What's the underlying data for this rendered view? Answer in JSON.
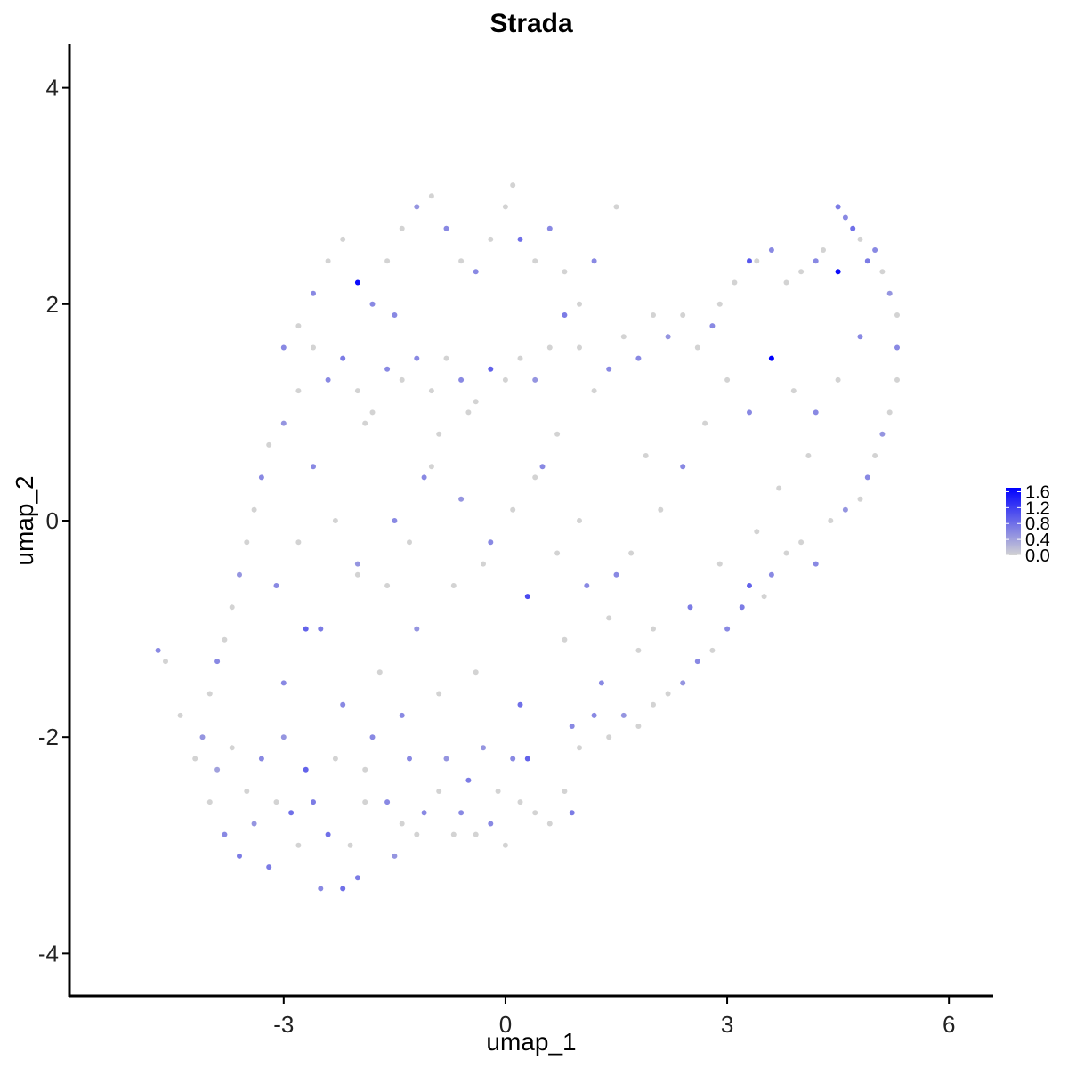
{
  "chart_data": {
    "type": "scatter",
    "title": "Strada",
    "xlabel": "umap_1",
    "ylabel": "umap_2",
    "xlim": [
      -5.9,
      6.6
    ],
    "ylim": [
      -4.4,
      4.4
    ],
    "xticks": [
      -3,
      0,
      3,
      6
    ],
    "yticks": [
      -4,
      -2,
      0,
      2,
      4
    ],
    "grid": false,
    "legend": {
      "placement": "right",
      "min": 0.0,
      "max": 1.7,
      "breaks": [
        "1.6",
        "1.2",
        "0.8",
        "0.4",
        "0.0"
      ],
      "low_color": "#d3d3d3",
      "high_color": "#0000ff"
    },
    "colors": {
      "low": "#d3d3d3",
      "high": "#0000ff"
    },
    "points": [
      [
        -4.7,
        -1.2,
        0.6
      ],
      [
        -4.6,
        -1.3,
        0.0
      ],
      [
        -4.4,
        -1.8,
        0.0
      ],
      [
        -4.2,
        -2.2,
        0.0
      ],
      [
        -4.1,
        -2.0,
        0.5
      ],
      [
        -4.0,
        -2.6,
        0.0
      ],
      [
        -3.9,
        -2.3,
        0.4
      ],
      [
        -3.8,
        -2.9,
        0.6
      ],
      [
        -3.7,
        -2.1,
        0.0
      ],
      [
        -3.6,
        -3.1,
        0.7
      ],
      [
        -3.5,
        -2.5,
        0.0
      ],
      [
        -3.4,
        -2.8,
        0.5
      ],
      [
        -3.3,
        -2.2,
        0.6
      ],
      [
        -3.2,
        -3.2,
        0.7
      ],
      [
        -3.1,
        -2.6,
        0.0
      ],
      [
        -3.0,
        -2.0,
        0.5
      ],
      [
        -2.9,
        -2.7,
        0.8
      ],
      [
        -2.8,
        -3.0,
        0.0
      ],
      [
        -2.7,
        -2.3,
        0.9
      ],
      [
        -2.6,
        -2.6,
        0.7
      ],
      [
        -2.5,
        -3.4,
        0.6
      ],
      [
        -2.4,
        -2.9,
        0.8
      ],
      [
        -2.3,
        -2.2,
        0.0
      ],
      [
        -2.2,
        -3.4,
        0.8
      ],
      [
        -2.1,
        -3.0,
        0.0
      ],
      [
        -2.0,
        -3.3,
        0.7
      ],
      [
        -1.9,
        -2.6,
        0.0
      ],
      [
        -1.8,
        -2.0,
        0.6
      ],
      [
        -1.5,
        -3.1,
        0.5
      ],
      [
        -1.4,
        -2.8,
        0.0
      ],
      [
        -1.3,
        -2.2,
        0.6
      ],
      [
        -1.2,
        -2.9,
        0.0
      ],
      [
        -1.1,
        -2.7,
        0.6
      ],
      [
        -0.9,
        -2.5,
        0.0
      ],
      [
        -0.8,
        -2.2,
        0.5
      ],
      [
        -0.7,
        -2.9,
        0.0
      ],
      [
        -0.6,
        -2.7,
        0.6
      ],
      [
        -0.5,
        -2.4,
        0.7
      ],
      [
        -0.4,
        -2.9,
        0.0
      ],
      [
        -0.3,
        -2.1,
        0.5
      ],
      [
        -0.2,
        -2.8,
        0.6
      ],
      [
        -0.1,
        -2.5,
        0.0
      ],
      [
        0.0,
        -3.0,
        0.0
      ],
      [
        0.1,
        -2.2,
        0.6
      ],
      [
        0.2,
        -2.6,
        0.0
      ],
      [
        0.3,
        -2.2,
        0.9
      ],
      [
        0.4,
        -2.7,
        0.0
      ],
      [
        0.6,
        -2.8,
        0.0
      ],
      [
        0.8,
        -2.5,
        0.0
      ],
      [
        0.9,
        -2.7,
        0.7
      ],
      [
        1.0,
        -2.1,
        0.0
      ],
      [
        1.2,
        -1.8,
        0.6
      ],
      [
        1.4,
        -2.0,
        0.0
      ],
      [
        1.6,
        -1.8,
        0.5
      ],
      [
        1.8,
        -1.9,
        0.0
      ],
      [
        2.0,
        -1.7,
        0.0
      ],
      [
        2.2,
        -1.6,
        0.0
      ],
      [
        2.4,
        -1.5,
        0.5
      ],
      [
        2.6,
        -1.3,
        0.6
      ],
      [
        2.8,
        -1.2,
        0.0
      ],
      [
        3.0,
        -1.0,
        0.6
      ],
      [
        3.2,
        -0.8,
        0.7
      ],
      [
        3.3,
        -0.6,
        0.9
      ],
      [
        3.5,
        -0.7,
        0.0
      ],
      [
        3.6,
        -0.5,
        0.6
      ],
      [
        3.8,
        -0.3,
        0.0
      ],
      [
        4.0,
        -0.2,
        0.0
      ],
      [
        4.2,
        -0.4,
        0.6
      ],
      [
        4.4,
        0.0,
        0.0
      ],
      [
        4.6,
        0.1,
        0.5
      ],
      [
        4.8,
        0.2,
        0.0
      ],
      [
        4.9,
        0.4,
        0.6
      ],
      [
        5.0,
        0.6,
        0.0
      ],
      [
        5.1,
        0.8,
        0.5
      ],
      [
        5.2,
        1.0,
        0.0
      ],
      [
        5.3,
        1.3,
        0.0
      ],
      [
        5.3,
        1.6,
        0.6
      ],
      [
        5.3,
        1.9,
        0.0
      ],
      [
        5.2,
        2.1,
        0.5
      ],
      [
        5.1,
        2.3,
        0.0
      ],
      [
        5.0,
        2.5,
        0.6
      ],
      [
        4.9,
        2.4,
        0.7
      ],
      [
        4.8,
        2.6,
        0.0
      ],
      [
        4.7,
        2.7,
        0.8
      ],
      [
        4.6,
        2.8,
        0.6
      ],
      [
        4.5,
        2.9,
        0.7
      ],
      [
        4.5,
        2.3,
        1.6
      ],
      [
        4.3,
        2.5,
        0.0
      ],
      [
        4.2,
        2.4,
        0.6
      ],
      [
        4.0,
        2.3,
        0.0
      ],
      [
        3.8,
        2.2,
        0.0
      ],
      [
        3.6,
        2.5,
        0.6
      ],
      [
        3.4,
        2.4,
        0.0
      ],
      [
        3.3,
        2.4,
        1.0
      ],
      [
        3.1,
        2.2,
        0.0
      ],
      [
        2.9,
        2.0,
        0.0
      ],
      [
        2.8,
        1.8,
        0.6
      ],
      [
        2.6,
        1.6,
        0.0
      ],
      [
        2.4,
        1.9,
        0.0
      ],
      [
        2.2,
        1.7,
        0.5
      ],
      [
        2.0,
        1.9,
        0.0
      ],
      [
        1.8,
        1.5,
        0.6
      ],
      [
        1.6,
        1.7,
        0.0
      ],
      [
        1.4,
        1.4,
        0.6
      ],
      [
        1.2,
        1.2,
        0.0
      ],
      [
        1.0,
        1.6,
        0.0
      ],
      [
        0.8,
        1.9,
        0.7
      ],
      [
        0.6,
        1.6,
        0.0
      ],
      [
        0.4,
        1.3,
        0.5
      ],
      [
        0.2,
        1.5,
        0.0
      ],
      [
        0.0,
        1.3,
        0.0
      ],
      [
        -0.2,
        1.4,
        0.9
      ],
      [
        -0.4,
        1.1,
        0.0
      ],
      [
        -0.6,
        1.3,
        0.6
      ],
      [
        -0.8,
        1.5,
        0.0
      ],
      [
        -1.0,
        1.2,
        0.0
      ],
      [
        -1.2,
        1.5,
        0.6
      ],
      [
        -1.4,
        1.3,
        0.0
      ],
      [
        -1.6,
        1.4,
        0.6
      ],
      [
        -1.8,
        1.0,
        0.0
      ],
      [
        -2.0,
        1.2,
        0.0
      ],
      [
        -2.2,
        1.5,
        0.7
      ],
      [
        -2.4,
        1.3,
        0.6
      ],
      [
        -2.6,
        1.6,
        0.0
      ],
      [
        -2.8,
        1.2,
        0.0
      ],
      [
        -3.0,
        0.9,
        0.5
      ],
      [
        -3.2,
        0.7,
        0.0
      ],
      [
        -3.3,
        0.4,
        0.6
      ],
      [
        -3.4,
        0.1,
        0.0
      ],
      [
        -3.5,
        -0.2,
        0.0
      ],
      [
        -3.6,
        -0.5,
        0.5
      ],
      [
        -3.7,
        -0.8,
        0.0
      ],
      [
        -3.8,
        -1.1,
        0.0
      ],
      [
        -3.9,
        -1.3,
        0.6
      ],
      [
        -4.0,
        -1.6,
        0.0
      ],
      [
        -3.0,
        -1.5,
        0.6
      ],
      [
        -2.5,
        -1.0,
        0.7
      ],
      [
        -2.0,
        -0.5,
        0.0
      ],
      [
        -1.5,
        0.0,
        0.6
      ],
      [
        -1.0,
        0.5,
        0.0
      ],
      [
        -0.5,
        1.0,
        0.0
      ],
      [
        0.5,
        0.5,
        0.6
      ],
      [
        1.0,
        0.0,
        0.0
      ],
      [
        1.5,
        -0.5,
        0.6
      ],
      [
        2.0,
        -1.0,
        0.0
      ],
      [
        2.5,
        -0.8,
        0.7
      ],
      [
        -2.7,
        -1.0,
        0.9
      ],
      [
        -2.2,
        -1.7,
        0.6
      ],
      [
        -1.7,
        -1.4,
        0.0
      ],
      [
        -1.2,
        -1.0,
        0.5
      ],
      [
        -0.7,
        -0.6,
        0.0
      ],
      [
        -0.2,
        -0.2,
        0.6
      ],
      [
        0.3,
        -0.7,
        1.1
      ],
      [
        0.8,
        -1.1,
        0.0
      ],
      [
        1.3,
        -1.5,
        0.6
      ],
      [
        1.8,
        -1.2,
        0.0
      ],
      [
        -2.6,
        2.1,
        0.6
      ],
      [
        -2.4,
        2.4,
        0.0
      ],
      [
        -2.2,
        2.6,
        0.0
      ],
      [
        -2.0,
        2.2,
        1.6
      ],
      [
        -1.8,
        2.0,
        0.6
      ],
      [
        -1.6,
        2.4,
        0.0
      ],
      [
        -1.4,
        2.7,
        0.0
      ],
      [
        -1.2,
        2.9,
        0.5
      ],
      [
        -1.0,
        3.0,
        0.0
      ],
      [
        -0.8,
        2.7,
        0.6
      ],
      [
        -0.6,
        2.4,
        0.0
      ],
      [
        -0.4,
        2.3,
        0.6
      ],
      [
        -0.2,
        2.6,
        0.0
      ],
      [
        0.0,
        2.9,
        0.0
      ],
      [
        0.1,
        3.1,
        0.0
      ],
      [
        0.2,
        2.6,
        0.8
      ],
      [
        0.4,
        2.4,
        0.0
      ],
      [
        0.6,
        2.7,
        0.6
      ],
      [
        0.8,
        2.3,
        0.0
      ],
      [
        1.0,
        2.0,
        0.0
      ],
      [
        1.2,
        2.4,
        0.6
      ],
      [
        1.5,
        2.9,
        0.0
      ],
      [
        -3.0,
        1.6,
        0.6
      ],
      [
        -2.8,
        1.8,
        0.0
      ],
      [
        -2.6,
        0.5,
        0.6
      ],
      [
        -2.3,
        0.0,
        0.0
      ],
      [
        -2.0,
        -0.4,
        0.5
      ],
      [
        -1.6,
        -0.6,
        0.0
      ],
      [
        -1.3,
        -0.2,
        0.0
      ],
      [
        -1.1,
        0.4,
        0.6
      ],
      [
        -0.9,
        0.8,
        0.0
      ],
      [
        -0.6,
        0.2,
        0.5
      ],
      [
        -0.3,
        -0.4,
        0.0
      ],
      [
        0.1,
        0.1,
        0.0
      ],
      [
        0.4,
        0.4,
        0.0
      ],
      [
        0.7,
        -0.3,
        0.0
      ],
      [
        1.1,
        -0.6,
        0.6
      ],
      [
        1.4,
        -0.9,
        0.0
      ],
      [
        1.7,
        -0.3,
        0.0
      ],
      [
        2.1,
        0.1,
        0.0
      ],
      [
        2.4,
        0.5,
        0.6
      ],
      [
        2.7,
        0.9,
        0.0
      ],
      [
        3.0,
        1.3,
        0.0
      ],
      [
        3.3,
        1.0,
        0.6
      ],
      [
        3.6,
        1.5,
        1.7
      ],
      [
        3.9,
        1.2,
        0.0
      ],
      [
        4.2,
        1.0,
        0.6
      ],
      [
        4.5,
        1.3,
        0.0
      ],
      [
        4.8,
        1.7,
        0.6
      ],
      [
        4.1,
        0.6,
        0.0
      ],
      [
        3.7,
        0.3,
        0.0
      ],
      [
        3.4,
        -0.1,
        0.0
      ],
      [
        -1.9,
        -2.3,
        0.0
      ],
      [
        -1.6,
        -2.6,
        0.6
      ],
      [
        -2.8,
        -0.2,
        0.0
      ],
      [
        -3.1,
        -0.6,
        0.6
      ],
      [
        -1.9,
        0.9,
        0.0
      ],
      [
        -1.5,
        1.9,
        0.6
      ],
      [
        0.7,
        0.8,
        0.0
      ],
      [
        1.9,
        0.6,
        0.0
      ],
      [
        0.9,
        -1.9,
        0.6
      ],
      [
        -0.9,
        -1.6,
        0.0
      ],
      [
        -1.4,
        -1.8,
        0.6
      ],
      [
        -0.4,
        -1.4,
        0.0
      ],
      [
        0.2,
        -1.7,
        0.8
      ],
      [
        2.9,
        -0.4,
        0.0
      ]
    ]
  }
}
